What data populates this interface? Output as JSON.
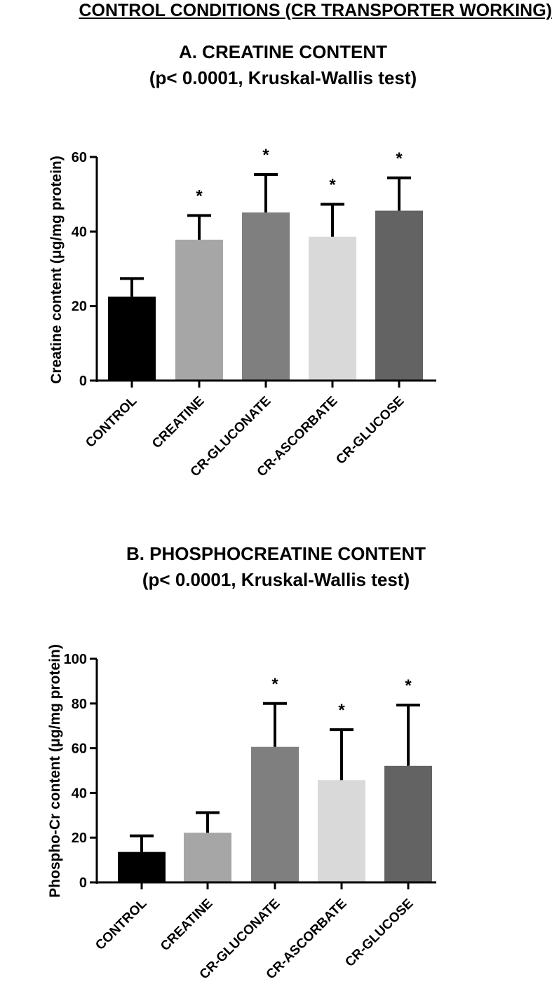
{
  "page_heading": "CONTROL CONDITIONS (CR TRANSPORTER WORKING)",
  "chart_data": [
    {
      "type": "bar",
      "title": "A. CREATINE CONTENT",
      "subtitle": "(p< 0.0001, Kruskal-Wallis test)",
      "xlabel": "",
      "ylabel": "Creatine content (μg/mg protein)",
      "ylim": [
        0,
        60
      ],
      "yticks": [
        "0",
        "20",
        "40",
        "60"
      ],
      "categories": [
        "CONTROL",
        "CREATINE",
        "CR-GLUCONATE",
        "CR-ASCORBATE",
        "CR-GLUCOSE"
      ],
      "values": [
        22.5,
        37.8,
        45.1,
        38.6,
        45.6
      ],
      "errors": [
        4.9,
        6.5,
        10.2,
        8.7,
        8.8
      ],
      "significance": [
        "",
        "*",
        "*",
        "*",
        "*"
      ],
      "colors": [
        "#000000",
        "#a6a6a6",
        "#7f7f7f",
        "#d9d9d9",
        "#636363"
      ],
      "grid": false,
      "legend": "none"
    },
    {
      "type": "bar",
      "title": "B. PHOSPHOCREATINE CONTENT",
      "subtitle": "(p< 0.0001, Kruskal-Wallis test)",
      "xlabel": "",
      "ylabel": "Phospho-Cr content (μg/mg protein)",
      "ylim": [
        0,
        100
      ],
      "yticks": [
        "0",
        "20",
        "40",
        "60",
        "80",
        "100"
      ],
      "categories": [
        "CONTROL",
        "CREATINE",
        "CR-GLUCONATE",
        "CR-ASCORBATE",
        "CR-GLUCOSE"
      ],
      "values": [
        13.6,
        22.2,
        60.6,
        45.7,
        52.1
      ],
      "errors": [
        7.2,
        9.0,
        19.4,
        22.6,
        27.2
      ],
      "significance": [
        "",
        "",
        "*",
        "*",
        "*"
      ],
      "colors": [
        "#000000",
        "#a6a6a6",
        "#7f7f7f",
        "#d9d9d9",
        "#636363"
      ],
      "grid": false,
      "legend": "none"
    }
  ]
}
